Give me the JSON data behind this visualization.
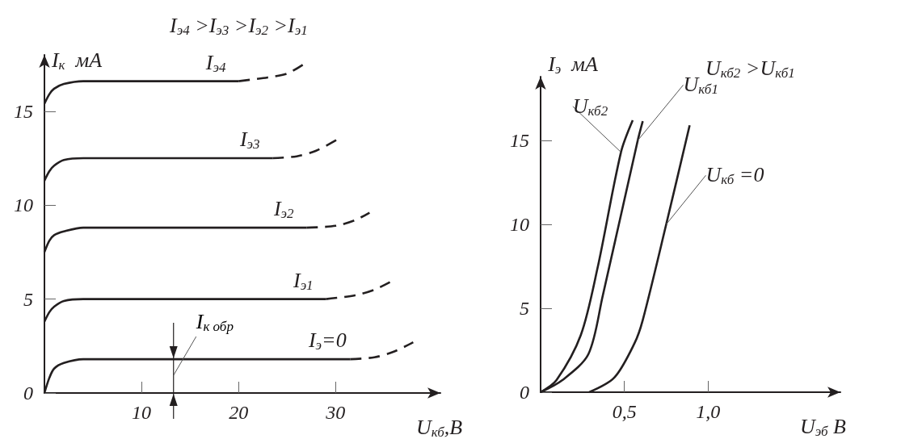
{
  "chart_data": [
    {
      "type": "line",
      "title": "I$_{э4}$ >I$_{э3}$ >I$_{э2}$ >I$_{э1}$",
      "xlabel": "U$_{кб}$,В",
      "ylabel": "I$_{к}$  мА",
      "xlim": [
        0,
        40.8
      ],
      "ylim": [
        0,
        18
      ],
      "xticks": [
        10,
        20,
        30
      ],
      "yticks": [
        0,
        5,
        10,
        15
      ],
      "grid": false,
      "legend": false,
      "marker": "none",
      "annotations": [
        {
          "text": "I$_{к обр}$",
          "x": 13.3,
          "y": 1.8
        }
      ],
      "series": [
        {
          "name": "I$_{э4}$",
          "color": "#231f20",
          "line_style": "solid",
          "x": [
            0,
            0.5,
            1,
            2,
            4,
            6,
            20
          ],
          "values": [
            15.4,
            15.9,
            16.2,
            16.45,
            16.6,
            16.6,
            16.6
          ]
        },
        {
          "color": "#231f20",
          "line_style": "dashed",
          "x": [
            20,
            23,
            25,
            26.7
          ],
          "values": [
            16.6,
            16.8,
            17.0,
            17.5
          ]
        },
        {
          "name": "I$_{э3}$",
          "color": "#231f20",
          "line_style": "solid",
          "x": [
            0,
            0.5,
            1,
            2,
            4,
            6,
            23.5
          ],
          "values": [
            11.3,
            11.8,
            12.1,
            12.4,
            12.5,
            12.5,
            12.5
          ]
        },
        {
          "color": "#231f20",
          "line_style": "dashed",
          "x": [
            23.5,
            26,
            28,
            30.2
          ],
          "values": [
            12.5,
            12.6,
            12.9,
            13.5
          ]
        },
        {
          "name": "I$_{э2}$",
          "color": "#231f20",
          "line_style": "solid",
          "x": [
            0,
            0.5,
            1,
            2,
            4,
            6,
            27
          ],
          "values": [
            7.5,
            8.1,
            8.4,
            8.6,
            8.8,
            8.8,
            8.8
          ]
        },
        {
          "color": "#231f20",
          "line_style": "dashed",
          "x": [
            27,
            30,
            32,
            33.5
          ],
          "values": [
            8.8,
            8.9,
            9.2,
            9.6
          ]
        },
        {
          "name": "I$_{э1}$",
          "color": "#231f20",
          "line_style": "solid",
          "x": [
            0,
            0.5,
            1,
            2,
            4,
            6,
            29
          ],
          "values": [
            3.8,
            4.3,
            4.6,
            4.9,
            5.0,
            5.0,
            5.0
          ]
        },
        {
          "color": "#231f20",
          "line_style": "dashed",
          "x": [
            29,
            32,
            34,
            35.6
          ],
          "values": [
            5.0,
            5.2,
            5.5,
            5.9
          ]
        },
        {
          "name": "I$_{э}$=0",
          "color": "#231f20",
          "line_style": "solid",
          "x": [
            0,
            0.5,
            1,
            2,
            4,
            6,
            31.5
          ],
          "values": [
            0,
            0.8,
            1.3,
            1.6,
            1.8,
            1.8,
            1.8
          ]
        },
        {
          "color": "#231f20",
          "line_style": "dashed",
          "x": [
            31.5,
            34,
            36,
            38
          ],
          "values": [
            1.8,
            1.9,
            2.2,
            2.7
          ]
        }
      ]
    },
    {
      "type": "line",
      "title": "U$_{кб2}$ >U$_{кб1}$",
      "xlabel": "U$_{эб}$ В",
      "ylabel": "I$_{э}$  мА",
      "xlim": [
        0,
        1.79
      ],
      "ylim": [
        0,
        18.8
      ],
      "xticks": [
        {
          "value": 0.5,
          "label": "0,5"
        },
        {
          "value": 1,
          "label": "1,0"
        }
      ],
      "yticks": [
        0,
        5,
        10,
        15
      ],
      "grid": false,
      "legend": false,
      "marker": "none",
      "series": [
        {
          "name": "U$_{кб2}$",
          "color": "#231f20",
          "line_style": "solid",
          "x": [
            0,
            0.095,
            0.24,
            0.34,
            0.48,
            0.55
          ],
          "values": [
            0,
            0.72,
            3.4,
            7.4,
            14.3,
            16.2
          ]
        },
        {
          "name": "U$_{кб1}$",
          "color": "#231f20",
          "line_style": "solid",
          "x": [
            0,
            0.13,
            0.285,
            0.37,
            0.58,
            0.61
          ],
          "values": [
            0,
            0.72,
            2.26,
            5.7,
            15.0,
            16.15
          ]
        },
        {
          "name": "U$_{кб}$ =0",
          "color": "#231f20",
          "line_style": "solid",
          "x": [
            0.29,
            0.44,
            0.56,
            0.61,
            0.75,
            0.89
          ],
          "values": [
            0,
            0.87,
            2.9,
            4.3,
            10,
            15.9
          ]
        }
      ]
    }
  ]
}
